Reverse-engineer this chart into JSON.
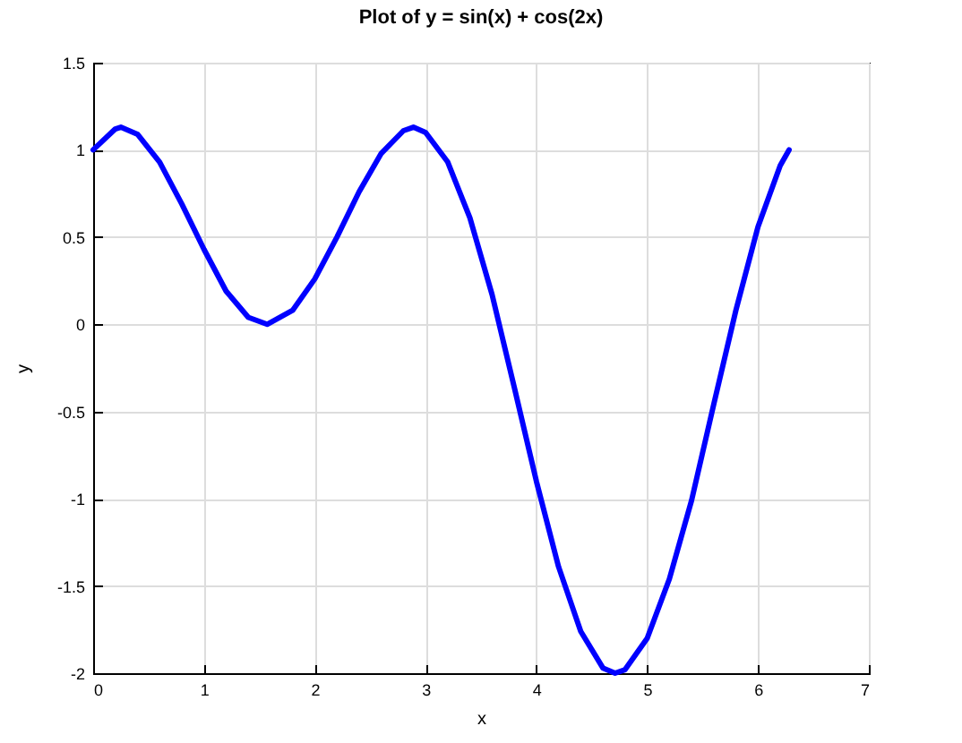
{
  "chart_data": {
    "type": "line",
    "title": "Plot of y = sin(x) + cos(2x)",
    "xlabel": "x",
    "ylabel": "y",
    "x": [
      0,
      0.2,
      0.25,
      0.4,
      0.6,
      0.8,
      1.0,
      1.2,
      1.4,
      1.57,
      1.8,
      2.0,
      2.2,
      2.4,
      2.6,
      2.8,
      2.89,
      3.0,
      3.2,
      3.4,
      3.6,
      3.8,
      4.0,
      4.2,
      4.4,
      4.6,
      4.71,
      4.8,
      5.0,
      5.2,
      5.4,
      5.6,
      5.8,
      6.0,
      6.2,
      6.28
    ],
    "values": [
      1,
      1.12,
      1.13,
      1.09,
      0.93,
      0.69,
      0.43,
      0.19,
      0.04,
      0,
      0.08,
      0.26,
      0.5,
      0.76,
      0.98,
      1.11,
      1.13,
      1.1,
      0.93,
      0.61,
      0.17,
      -0.36,
      -0.9,
      -1.39,
      -1.76,
      -1.97,
      -2,
      -1.98,
      -1.8,
      -1.46,
      -1.01,
      -0.46,
      0.08,
      0.56,
      0.91,
      1
    ],
    "color": "#0000ff",
    "xlim": [
      0,
      7
    ],
    "xticks": [
      0,
      1,
      2,
      3,
      4,
      5,
      6,
      7
    ],
    "ylim": [
      -2,
      1.5
    ],
    "yticks": [
      -2,
      -1.5,
      -1,
      -0.5,
      0,
      0.5,
      1,
      1.5
    ],
    "grid": true
  }
}
